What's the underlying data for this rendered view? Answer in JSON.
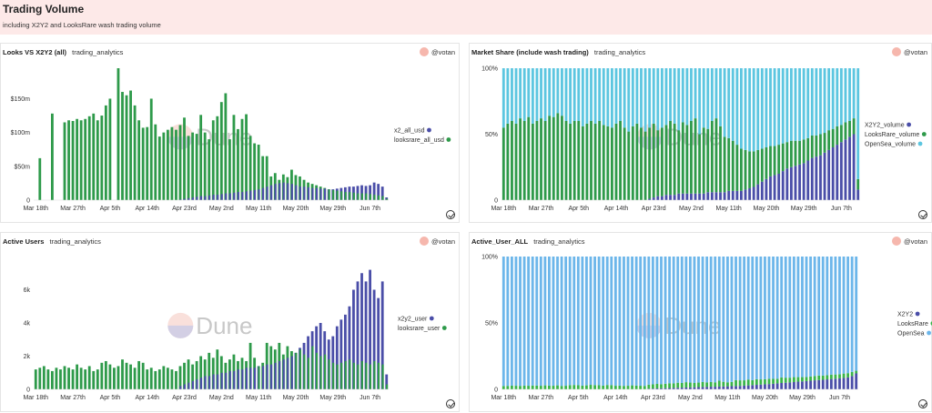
{
  "header": {
    "title": "Trading Volume",
    "subtitle": "including X2Y2 and LooksRare wash trading volume"
  },
  "watermark": "Dune",
  "colors": {
    "blue": "#4a4ea8",
    "green": "#2e9a4a",
    "sky": "#5cc6e0",
    "lightsky": "#6cb6ea",
    "lightgreen": "#39b54a"
  },
  "x_labels": [
    "Mar 18th",
    "Mar 27th",
    "Apr 5th",
    "Apr 14th",
    "Apr 23rd",
    "May 2nd",
    "May 11th",
    "May 20th",
    "May 29th",
    "Jun 7th"
  ],
  "panels": [
    {
      "id": "p1",
      "name": "Looks VS X2Y2 (all)",
      "tag": "trading_analytics",
      "author": "@votan",
      "chart_data": {
        "type": "bar",
        "stacking": "overlap",
        "days": 86,
        "y_ticks": [
          "$150m",
          "$100m",
          "$50m",
          "0"
        ],
        "y_values": [
          150,
          100,
          50,
          0
        ],
        "ylim": [
          0,
          195
        ],
        "legend_position": "right",
        "series": [
          {
            "name": "x2_all_usd",
            "color": "#4a4ea8",
            "values": [
              0,
              0,
              0,
              0,
              0,
              0,
              0,
              0,
              0,
              0,
              0,
              0,
              0,
              0,
              0,
              0,
              0,
              0,
              0,
              0,
              0,
              0,
              0,
              0,
              0,
              0,
              0,
              0,
              0,
              0,
              0,
              0,
              0,
              0,
              0,
              1,
              2,
              3,
              4,
              5,
              6,
              6,
              7,
              8,
              8,
              9,
              10,
              10,
              11,
              12,
              12,
              13,
              14,
              15,
              16,
              18,
              20,
              22,
              24,
              25,
              26,
              25,
              24,
              22,
              20,
              20,
              19,
              18,
              18,
              17,
              17,
              16,
              16,
              17,
              18,
              19,
              20,
              20,
              21,
              22,
              21,
              22,
              26,
              24,
              20,
              4
            ]
          },
          {
            "name": "looksrare_all_usd",
            "color": "#2e9a4a",
            "values": [
              0,
              62,
              0,
              0,
              128,
              0,
              0,
              115,
              118,
              117,
              120,
              118,
              120,
              124,
              128,
              118,
              125,
              140,
              150,
              0,
              195,
              160,
              155,
              162,
              140,
              118,
              107,
              108,
              150,
              112,
              94,
              100,
              104,
              108,
              104,
              111,
              122,
              95,
              100,
              98,
              126,
              100,
              90,
              118,
              124,
              145,
              158,
              90,
              126,
              105,
              120,
              127,
              95,
              84,
              82,
              65,
              65,
              35,
              40,
              30,
              38,
              34,
              45,
              37,
              35,
              30,
              26,
              24,
              22,
              20,
              18,
              16,
              15,
              14,
              13,
              12,
              12,
              11,
              10,
              10,
              10,
              9,
              8,
              7,
              6,
              2
            ]
          }
        ]
      }
    },
    {
      "id": "p2",
      "name": "Market Share (include wash trading)",
      "tag": "trading_analytics",
      "author": "@votan",
      "chart_data": {
        "type": "bar",
        "stacking": "percent",
        "days": 86,
        "y_ticks": [
          "100%",
          "50%",
          "0"
        ],
        "y_values": [
          100,
          50,
          0
        ],
        "ylim": [
          0,
          100
        ],
        "legend_position": "right",
        "series": [
          {
            "name": "X2Y2_volume",
            "color": "#4a4ea8",
            "values": [
              0,
              0,
              0,
              0,
              0,
              0,
              0,
              0,
              0,
              0,
              0,
              0,
              0,
              0,
              0,
              0,
              0,
              0,
              0,
              0,
              0,
              0,
              0,
              0,
              0,
              0,
              0,
              0,
              0,
              0,
              0,
              0,
              0,
              0,
              0,
              1,
              2,
              3,
              3,
              4,
              4,
              4,
              5,
              5,
              5,
              5,
              5,
              5,
              5,
              6,
              6,
              6,
              6,
              6,
              7,
              7,
              7,
              7,
              8,
              9,
              10,
              12,
              14,
              16,
              18,
              19,
              20,
              22,
              24,
              25,
              26,
              27,
              28,
              30,
              32,
              33,
              34,
              36,
              38,
              40,
              42,
              44,
              46,
              48,
              50,
              8
            ]
          },
          {
            "name": "LooksRare_volume",
            "color": "#2e9a4a",
            "values": [
              55,
              58,
              60,
              58,
              62,
              60,
              63,
              58,
              60,
              62,
              60,
              64,
              63,
              66,
              64,
              60,
              58,
              60,
              60,
              56,
              58,
              60,
              58,
              60,
              57,
              56,
              55,
              58,
              60,
              55,
              52,
              56,
              58,
              55,
              52,
              54,
              56,
              50,
              52,
              53,
              56,
              54,
              48,
              54,
              52,
              55,
              57,
              45,
              50,
              48,
              54,
              56,
              50,
              42,
              40,
              38,
              35,
              32,
              30,
              28,
              27,
              26,
              25,
              24,
              23,
              22,
              22,
              21,
              20,
              20,
              19,
              18,
              18,
              17,
              17,
              16,
              16,
              15,
              15,
              14,
              14,
              13,
              13,
              12,
              12,
              8
            ]
          },
          {
            "name": "OpenSea_volume",
            "color": "#5cc6e0",
            "values": [
              45,
              42,
              40,
              42,
              38,
              40,
              37,
              42,
              40,
              38,
              40,
              36,
              37,
              34,
              36,
              40,
              42,
              40,
              40,
              44,
              42,
              40,
              42,
              40,
              43,
              44,
              45,
              42,
              40,
              45,
              48,
              44,
              42,
              45,
              48,
              45,
              42,
              47,
              45,
              43,
              40,
              42,
              47,
              41,
              43,
              40,
              38,
              50,
              45,
              46,
              40,
              38,
              44,
              52,
              53,
              55,
              58,
              61,
              62,
              63,
              63,
              62,
              61,
              60,
              59,
              59,
              58,
              57,
              56,
              55,
              55,
              55,
              54,
              53,
              51,
              51,
              50,
              49,
              47,
              46,
              44,
              43,
              41,
              40,
              38,
              84
            ]
          }
        ]
      }
    },
    {
      "id": "p3",
      "name": "Active Users",
      "tag": "trading_analytics",
      "author": "@votan",
      "chart_data": {
        "type": "bar",
        "stacking": "overlap",
        "days": 86,
        "y_ticks": [
          "6k",
          "4k",
          "2k",
          "0"
        ],
        "y_values": [
          6000,
          4000,
          2000,
          0
        ],
        "ylim": [
          0,
          8000
        ],
        "legend_position": "right",
        "series": [
          {
            "name": "x2y2_user",
            "color": "#4a4ea8",
            "values": [
              0,
              0,
              0,
              0,
              0,
              0,
              0,
              0,
              0,
              0,
              0,
              0,
              0,
              0,
              0,
              0,
              0,
              0,
              0,
              0,
              0,
              0,
              0,
              0,
              0,
              0,
              0,
              0,
              0,
              0,
              0,
              0,
              0,
              0,
              0,
              200,
              300,
              400,
              500,
              600,
              700,
              800,
              800,
              900,
              900,
              1000,
              1000,
              1100,
              1100,
              1200,
              1200,
              1300,
              1300,
              1300,
              1400,
              1400,
              1500,
              1500,
              1600,
              1700,
              1800,
              1900,
              2000,
              2200,
              2500,
              2800,
              3200,
              3500,
              3800,
              4000,
              3500,
              3000,
              3200,
              3800,
              4200,
              4500,
              5000,
              6000,
              6500,
              7000,
              6500,
              7200,
              6000,
              5500,
              6500,
              900
            ]
          },
          {
            "name": "looksrare_user",
            "color": "#2e9a4a",
            "values": [
              1200,
              1300,
              1400,
              1200,
              1100,
              1300,
              1200,
              1400,
              1300,
              1200,
              1500,
              1300,
              1200,
              1400,
              1100,
              1200,
              1600,
              1700,
              1500,
              1300,
              1400,
              1800,
              1600,
              1500,
              1300,
              1700,
              1600,
              1200,
              1300,
              1100,
              1200,
              1400,
              1300,
              1200,
              1100,
              1400,
              1600,
              1800,
              1500,
              1700,
              2000,
              1800,
              2200,
              1900,
              2400,
              2000,
              1600,
              1800,
              2100,
              1700,
              1900,
              1700,
              2800,
              1900,
              1400,
              1600,
              2800,
              2600,
              2400,
              2800,
              2100,
              2600,
              2300,
              2200,
              2400,
              2100,
              1900,
              2600,
              2200,
              2000,
              2100,
              1800,
              1600,
              1500,
              1600,
              1700,
              1800,
              1600,
              1500,
              1700,
              1600,
              1500,
              1700,
              1600,
              1500,
              300
            ]
          }
        ]
      }
    },
    {
      "id": "p4",
      "name": "Active_User_ALL",
      "tag": "trading_analytics",
      "author": "@votan",
      "chart_data": {
        "type": "bar",
        "stacking": "percent",
        "days": 86,
        "y_ticks": [
          "100%",
          "50%",
          "0"
        ],
        "y_values": [
          100,
          50,
          0
        ],
        "ylim": [
          0,
          100
        ],
        "legend_position": "right",
        "series": [
          {
            "name": "X2Y2",
            "color": "#4a4ea8",
            "values": [
              0,
              0,
              0,
              0,
              0,
              0,
              0,
              0,
              0,
              0,
              0,
              0,
              0,
              0,
              0,
              0,
              0,
              0,
              0,
              0,
              0,
              0,
              0,
              0,
              0,
              0,
              0,
              0,
              0,
              0,
              0,
              0,
              0,
              0,
              0,
              0.5,
              0.6,
              0.7,
              0.8,
              0.9,
              1,
              1.1,
              1.2,
              1.3,
              1.4,
              1.5,
              1.6,
              1.7,
              1.8,
              1.9,
              2,
              2,
              2.1,
              2.2,
              2.3,
              2.4,
              2.5,
              2.6,
              2.8,
              3,
              3.2,
              3.4,
              3.6,
              3.8,
              4,
              4.2,
              4.5,
              4.8,
              5,
              5.2,
              5.5,
              5.8,
              6,
              6.2,
              6.5,
              6.8,
              7,
              7.2,
              7.5,
              7.8,
              8,
              8.3,
              8.6,
              9,
              10,
              12
            ]
          },
          {
            "name": "LooksRare",
            "color": "#39b54a",
            "values": [
              2.5,
              2.6,
              2.8,
              2.7,
              2.6,
              2.8,
              2.7,
              2.9,
              2.8,
              2.7,
              3,
              2.8,
              2.7,
              3,
              2.6,
              2.7,
              3.2,
              3.3,
              3.1,
              2.8,
              3,
              3.4,
              3.2,
              3.1,
              2.8,
              3.3,
              3.2,
              2.7,
              2.8,
              2.6,
              2.7,
              3,
              2.8,
              2.7,
              2.6,
              3,
              3.2,
              3.4,
              3.1,
              3.3,
              3.6,
              3.4,
              3.8,
              3.5,
              4,
              3.6,
              3.2,
              3.4,
              3.7,
              3.3,
              3.5,
              3.3,
              4.4,
              3.5,
              3,
              3.2,
              4.4,
              4.2,
              4,
              4.4,
              3.7,
              4.2,
              3.9,
              3.8,
              4,
              3.7,
              3.5,
              4.2,
              3.8,
              3.6,
              3.7,
              3.4,
              3.2,
              3.1,
              3.2,
              3.3,
              3.4,
              3.2,
              3.1,
              3.3,
              3.2,
              3.1,
              3.3,
              3.2,
              3.1,
              2
            ]
          },
          {
            "name": "OpenSea",
            "color": "#6cb6ea",
            "values": [
              97.5,
              97.4,
              97.2,
              97.3,
              97.4,
              97.2,
              97.3,
              97.1,
              97.2,
              97.3,
              97,
              97.2,
              97.3,
              97,
              97.4,
              97.3,
              96.8,
              96.7,
              96.9,
              97.2,
              97,
              96.6,
              96.8,
              96.9,
              97.2,
              96.7,
              96.8,
              97.3,
              97.2,
              97.4,
              97.3,
              97,
              97.2,
              97.3,
              97.4,
              96.5,
              96.2,
              95.9,
              96.1,
              95.8,
              95.4,
              95.5,
              95,
              95.2,
              94.6,
              94.9,
              95.2,
              94.9,
              94.5,
              94.8,
              94.5,
              94.7,
              93.5,
              94.3,
              94.7,
              94.4,
              93.1,
              93.2,
              93.2,
              92.6,
              93.1,
              92.4,
              92.5,
              92.4,
              92,
              92.1,
              92,
              91,
              91.2,
              91.2,
              90.8,
              90.8,
              90.8,
              90.7,
              90.3,
              89.9,
              89.6,
              89.6,
              89.4,
              88.9,
              88.8,
              88.6,
              88.1,
              87.8,
              86.9,
              86
            ]
          }
        ]
      }
    }
  ]
}
